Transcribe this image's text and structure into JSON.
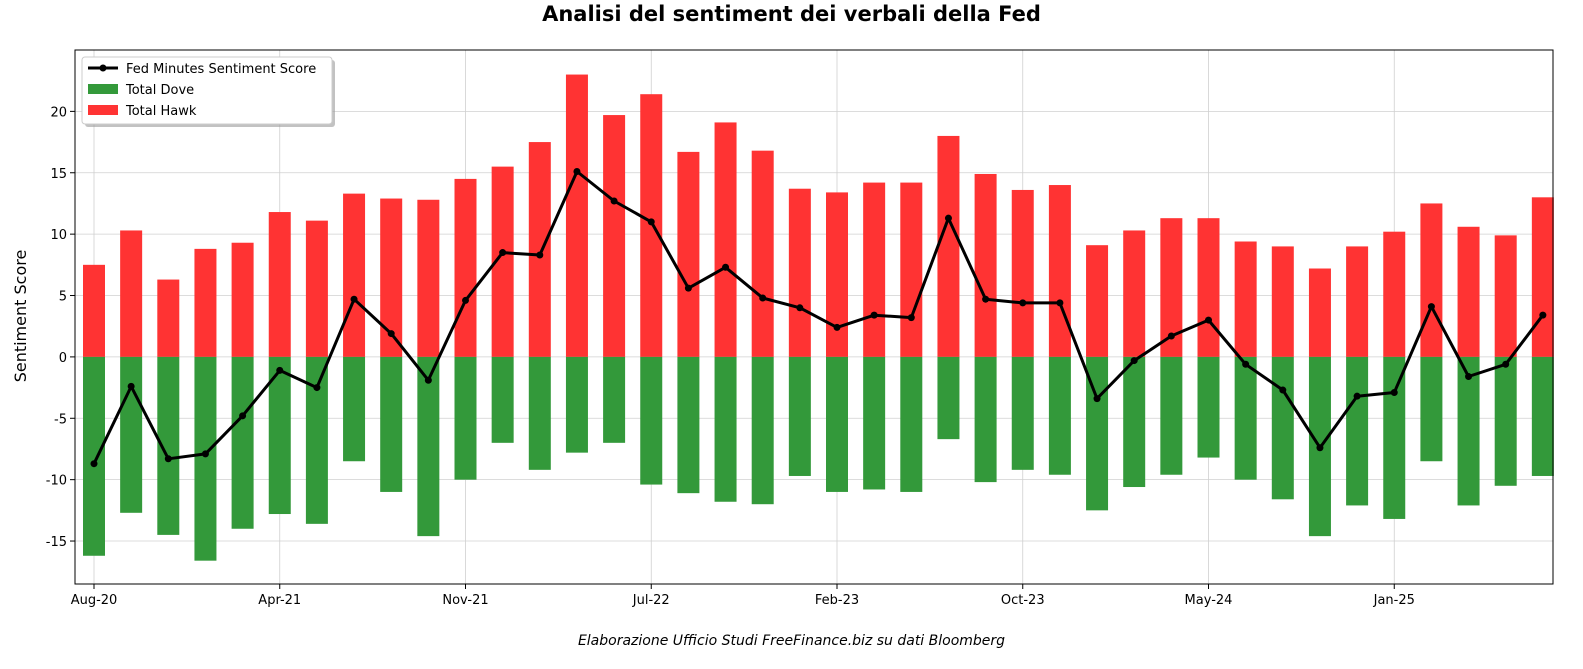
{
  "chart_data": {
    "type": "bar",
    "title": "Analisi del sentiment dei verbali della Fed",
    "ylabel": "Sentiment Score",
    "xlabel": "",
    "footnote": "Elaborazione Ufficio Studi FreeFinance.biz su dati Bloomberg",
    "ylim": [
      -18.5,
      25
    ],
    "yticks": [
      -15,
      -10,
      -5,
      0,
      5,
      10,
      15,
      20
    ],
    "xtick_labels": [
      {
        "index": 0,
        "label": "Aug-20"
      },
      {
        "index": 5,
        "label": "Apr-21"
      },
      {
        "index": 10,
        "label": "Nov-21"
      },
      {
        "index": 15,
        "label": "Jul-22"
      },
      {
        "index": 20,
        "label": "Feb-23"
      },
      {
        "index": 25,
        "label": "Oct-23"
      },
      {
        "index": 30,
        "label": "May-24"
      },
      {
        "index": 35,
        "label": "Jan-25"
      }
    ],
    "grid": true,
    "legend_position": "top-left",
    "series": [
      {
        "name": "Fed Minutes Sentiment Score",
        "kind": "line",
        "color": "#000000",
        "values": [
          -8.7,
          -2.4,
          -8.3,
          -7.9,
          -4.8,
          -1.1,
          -2.5,
          4.7,
          1.9,
          -1.9,
          4.6,
          8.5,
          8.3,
          15.1,
          12.7,
          11.0,
          5.6,
          7.3,
          4.8,
          4.0,
          2.4,
          3.4,
          3.2,
          11.3,
          4.7,
          4.4,
          4.4,
          -3.4,
          -0.3,
          1.7,
          3.0,
          -0.6,
          -2.7,
          -7.4,
          -3.2,
          -2.9,
          4.1,
          -1.6,
          -0.6,
          3.4
        ]
      },
      {
        "name": "Total Dove",
        "kind": "bar",
        "color": "#33993a",
        "values": [
          -16.2,
          -12.7,
          -14.5,
          -16.6,
          -14.0,
          -12.8,
          -13.6,
          -8.5,
          -11.0,
          -14.6,
          -10.0,
          -7.0,
          -9.2,
          -7.8,
          -7.0,
          -10.4,
          -11.1,
          -11.8,
          -12.0,
          -9.7,
          -11.0,
          -10.8,
          -11.0,
          -6.7,
          -10.2,
          -9.2,
          -9.6,
          -12.5,
          -10.6,
          -9.6,
          -8.2,
          -10.0,
          -11.6,
          -14.6,
          -12.1,
          -13.2,
          -8.5,
          -12.1,
          -10.5,
          -9.7
        ]
      },
      {
        "name": "Total Hawk",
        "kind": "bar",
        "color": "#ff3333",
        "values": [
          7.5,
          10.3,
          6.3,
          8.8,
          9.3,
          11.8,
          11.1,
          13.3,
          12.9,
          12.8,
          14.5,
          15.5,
          17.5,
          23.0,
          19.7,
          21.4,
          16.7,
          19.1,
          16.8,
          13.7,
          13.4,
          14.2,
          14.2,
          18.0,
          14.9,
          13.6,
          14.0,
          9.1,
          10.3,
          11.3,
          11.3,
          9.4,
          9.0,
          7.2,
          9.0,
          10.2,
          12.5,
          10.6,
          9.9,
          13.0
        ]
      }
    ]
  }
}
